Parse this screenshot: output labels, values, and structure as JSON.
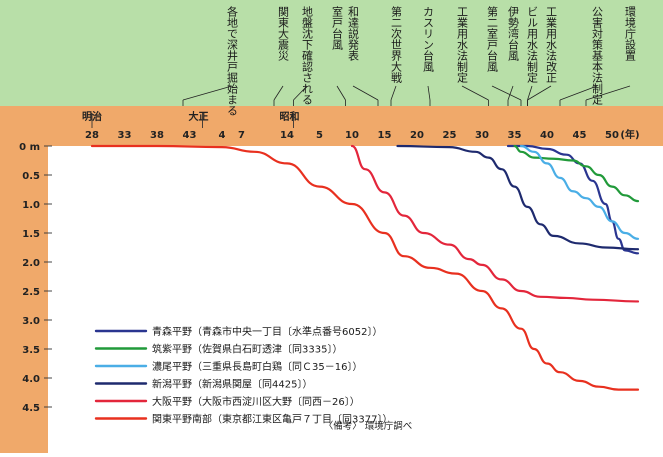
{
  "chart_data": {
    "type": "line",
    "title": "",
    "xlabel": "",
    "ylabel": "",
    "x_unit": "(年)",
    "y_unit": "m",
    "ylim": [
      0,
      4.7
    ],
    "y_ticks": [
      {
        "v": 0,
        "label": "0 m"
      },
      {
        "v": 0.5,
        "label": "0.5"
      },
      {
        "v": 1.0,
        "label": "1.0"
      },
      {
        "v": 1.5,
        "label": "1.5"
      },
      {
        "v": 2.0,
        "label": "2.0"
      },
      {
        "v": 2.5,
        "label": "2.5"
      },
      {
        "v": 3.0,
        "label": "3.0"
      },
      {
        "v": 3.5,
        "label": "3.5"
      },
      {
        "v": 4.0,
        "label": "4.0"
      },
      {
        "v": 4.5,
        "label": "4.5"
      }
    ],
    "eras": [
      {
        "label": "明治",
        "year": 1895
      },
      {
        "label": "大正",
        "year": 1912
      },
      {
        "label": "昭和",
        "year": 1926
      }
    ],
    "x_ticks": [
      {
        "year": 1895,
        "label": "28"
      },
      {
        "year": 1900,
        "label": "33"
      },
      {
        "year": 1905,
        "label": "38"
      },
      {
        "year": 1910,
        "label": "43"
      },
      {
        "year": 1915,
        "label": "4"
      },
      {
        "year": 1918,
        "label": "7"
      },
      {
        "year": 1925,
        "label": "14"
      },
      {
        "year": 1930,
        "label": "5"
      },
      {
        "year": 1935,
        "label": "10"
      },
      {
        "year": 1940,
        "label": "15"
      },
      {
        "year": 1945,
        "label": "20"
      },
      {
        "year": 1950,
        "label": "25"
      },
      {
        "year": 1955,
        "label": "30"
      },
      {
        "year": 1960,
        "label": "35"
      },
      {
        "year": 1965,
        "label": "40"
      },
      {
        "year": 1970,
        "label": "45"
      },
      {
        "year": 1975,
        "label": "50"
      }
    ],
    "events": [
      {
        "label": "各地で深井戸掘始まる",
        "year": 1909
      },
      {
        "label": "関東大震災",
        "year": 1923
      },
      {
        "label": "地盤沈下確認される",
        "year": 1926
      },
      {
        "label": "室戸台風",
        "year": 1934
      },
      {
        "label": "和達説発表",
        "year": 1939
      },
      {
        "label": "第二次世界大戦",
        "year": 1941
      },
      {
        "label": "カスリン台風",
        "year": 1947
      },
      {
        "label": "工業用水法制定",
        "year": 1956
      },
      {
        "label": "第二室戸台風",
        "year": 1961
      },
      {
        "label": "伊勢湾台風",
        "year": 1959
      },
      {
        "label": "ビル用水法制定",
        "year": 1962
      },
      {
        "label": "工業用水法改正",
        "year": 1962
      },
      {
        "label": "公害対策基本法制定",
        "year": 1967
      },
      {
        "label": "環境庁設置",
        "year": 1971
      }
    ],
    "series": [
      {
        "name": "青森平野（青森市中央一丁目〔水準点番号6052〕）",
        "color": "#2a3590",
        "points": [
          [
            1959,
            0
          ],
          [
            1962,
            0
          ],
          [
            1965,
            0.05
          ],
          [
            1968,
            0.15
          ],
          [
            1970,
            0.3
          ],
          [
            1972,
            0.6
          ],
          [
            1974,
            1.0
          ],
          [
            1975,
            1.3
          ],
          [
            1976,
            1.6
          ],
          [
            1977,
            1.8
          ],
          [
            1979,
            1.85
          ]
        ]
      },
      {
        "name": "筑紫平野（佐賀県白石町透津〔同3335〕）",
        "color": "#219a3a",
        "points": [
          [
            1960,
            0
          ],
          [
            1961,
            0.1
          ],
          [
            1963,
            0.2
          ],
          [
            1966,
            0.22
          ],
          [
            1969,
            0.25
          ],
          [
            1971,
            0.35
          ],
          [
            1973,
            0.5
          ],
          [
            1975,
            0.7
          ],
          [
            1977,
            0.85
          ],
          [
            1979,
            0.95
          ]
        ]
      },
      {
        "name": "濃尾平野（三重県長島町白鶏〔同Ｃ35－16〕）",
        "color": "#4aaee6",
        "points": [
          [
            1961,
            0
          ],
          [
            1963,
            0.1
          ],
          [
            1965,
            0.3
          ],
          [
            1967,
            0.55
          ],
          [
            1969,
            0.78
          ],
          [
            1971,
            0.9
          ],
          [
            1973,
            1.05
          ],
          [
            1975,
            1.3
          ],
          [
            1977,
            1.5
          ],
          [
            1979,
            1.6
          ]
        ]
      },
      {
        "name": "新潟平野（新潟県関屋〔同4425〕）",
        "color": "#1e2a6e",
        "points": [
          [
            1942,
            0
          ],
          [
            1950,
            0.02
          ],
          [
            1954,
            0.1
          ],
          [
            1956,
            0.2
          ],
          [
            1958,
            0.4
          ],
          [
            1960,
            0.7
          ],
          [
            1962,
            1.05
          ],
          [
            1964,
            1.35
          ],
          [
            1966,
            1.55
          ],
          [
            1970,
            1.68
          ],
          [
            1974,
            1.75
          ],
          [
            1979,
            1.78
          ]
        ]
      },
      {
        "name": "大阪平野（大阪市西淀川区大野〔同西－26〕）",
        "color": "#e3263b",
        "points": [
          [
            1935,
            0
          ],
          [
            1937,
            0.4
          ],
          [
            1940,
            0.8
          ],
          [
            1943,
            1.2
          ],
          [
            1946,
            1.5
          ],
          [
            1950,
            1.7
          ],
          [
            1953,
            1.95
          ],
          [
            1955,
            2.05
          ],
          [
            1958,
            2.3
          ],
          [
            1961,
            2.5
          ],
          [
            1964,
            2.6
          ],
          [
            1968,
            2.62
          ],
          [
            1972,
            2.65
          ],
          [
            1979,
            2.68
          ]
        ]
      },
      {
        "name": "関東平野南部（東京都江東区亀戸７丁目〔同3377〕）",
        "color": "#e8301f",
        "points": [
          [
            1895,
            0
          ],
          [
            1905,
            0
          ],
          [
            1915,
            0.02
          ],
          [
            1920,
            0.1
          ],
          [
            1925,
            0.3
          ],
          [
            1930,
            0.7
          ],
          [
            1935,
            1.0
          ],
          [
            1940,
            1.5
          ],
          [
            1943,
            1.9
          ],
          [
            1947,
            2.1
          ],
          [
            1951,
            2.2
          ],
          [
            1955,
            2.5
          ],
          [
            1958,
            2.8
          ],
          [
            1961,
            3.15
          ],
          [
            1963,
            3.5
          ],
          [
            1965,
            3.75
          ],
          [
            1967,
            3.9
          ],
          [
            1970,
            4.05
          ],
          [
            1973,
            4.15
          ],
          [
            1976,
            4.2
          ],
          [
            1979,
            4.2
          ]
        ]
      }
    ],
    "note": "〈備考〉 環境庁調べ"
  }
}
